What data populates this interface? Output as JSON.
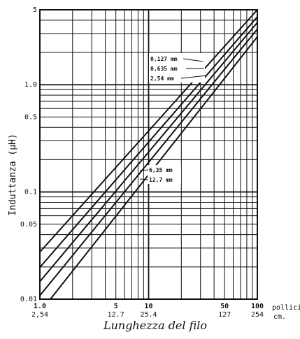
{
  "chart_data": {
    "type": "line",
    "xlabel": "Lunghezza del filo",
    "ylabel": "Induttanza (µH)",
    "x_unit_primary": "pollici",
    "x_unit_secondary": "cm.",
    "xscale": "log",
    "yscale": "log",
    "xlim": [
      1,
      100
    ],
    "ylim": [
      0.01,
      5
    ],
    "grid": true,
    "x_ticks": [
      {
        "value": 1,
        "label": "1.0",
        "sublabel": "2,54"
      },
      {
        "value": 5,
        "label": "5",
        "sublabel": "12.7"
      },
      {
        "value": 10,
        "label": "10",
        "sublabel": "25.4"
      },
      {
        "value": 50,
        "label": "50",
        "sublabel": "127"
      },
      {
        "value": 100,
        "label": "100",
        "sublabel": "254"
      }
    ],
    "y_ticks": [
      {
        "value": 0.01,
        "label": "0.01"
      },
      {
        "value": 0.05,
        "label": "0.05"
      },
      {
        "value": 0.1,
        "label": "0.1"
      },
      {
        "value": 0.5,
        "label": "0.5"
      },
      {
        "value": 1.0,
        "label": "1.0"
      },
      {
        "value": 5,
        "label": "5"
      }
    ],
    "series": [
      {
        "name": "0,127 mm",
        "x": [
          1,
          100
        ],
        "y": [
          0.0275,
          5.0
        ]
      },
      {
        "name": "0,635 mm",
        "x": [
          1,
          100
        ],
        "y": [
          0.0198,
          4.3
        ]
      },
      {
        "name": "2,54 mm",
        "x": [
          1,
          100
        ],
        "y": [
          0.0146,
          3.8
        ]
      },
      {
        "name": "6,35 mm",
        "x": [
          1,
          100
        ],
        "y": [
          0.0108,
          3.3
        ]
      },
      {
        "name": "12,7 mm",
        "x": [
          1.25,
          100
        ],
        "y": [
          0.01,
          2.8
        ]
      }
    ],
    "annotations": [
      {
        "text": "0,127 mm",
        "series": 0
      },
      {
        "text": "0,635 mm",
        "series": 1
      },
      {
        "text": "2,54 mm",
        "series": 2
      },
      {
        "text": "6,35 mm",
        "series": 3
      },
      {
        "text": "12,7 mm",
        "series": 4
      }
    ]
  }
}
